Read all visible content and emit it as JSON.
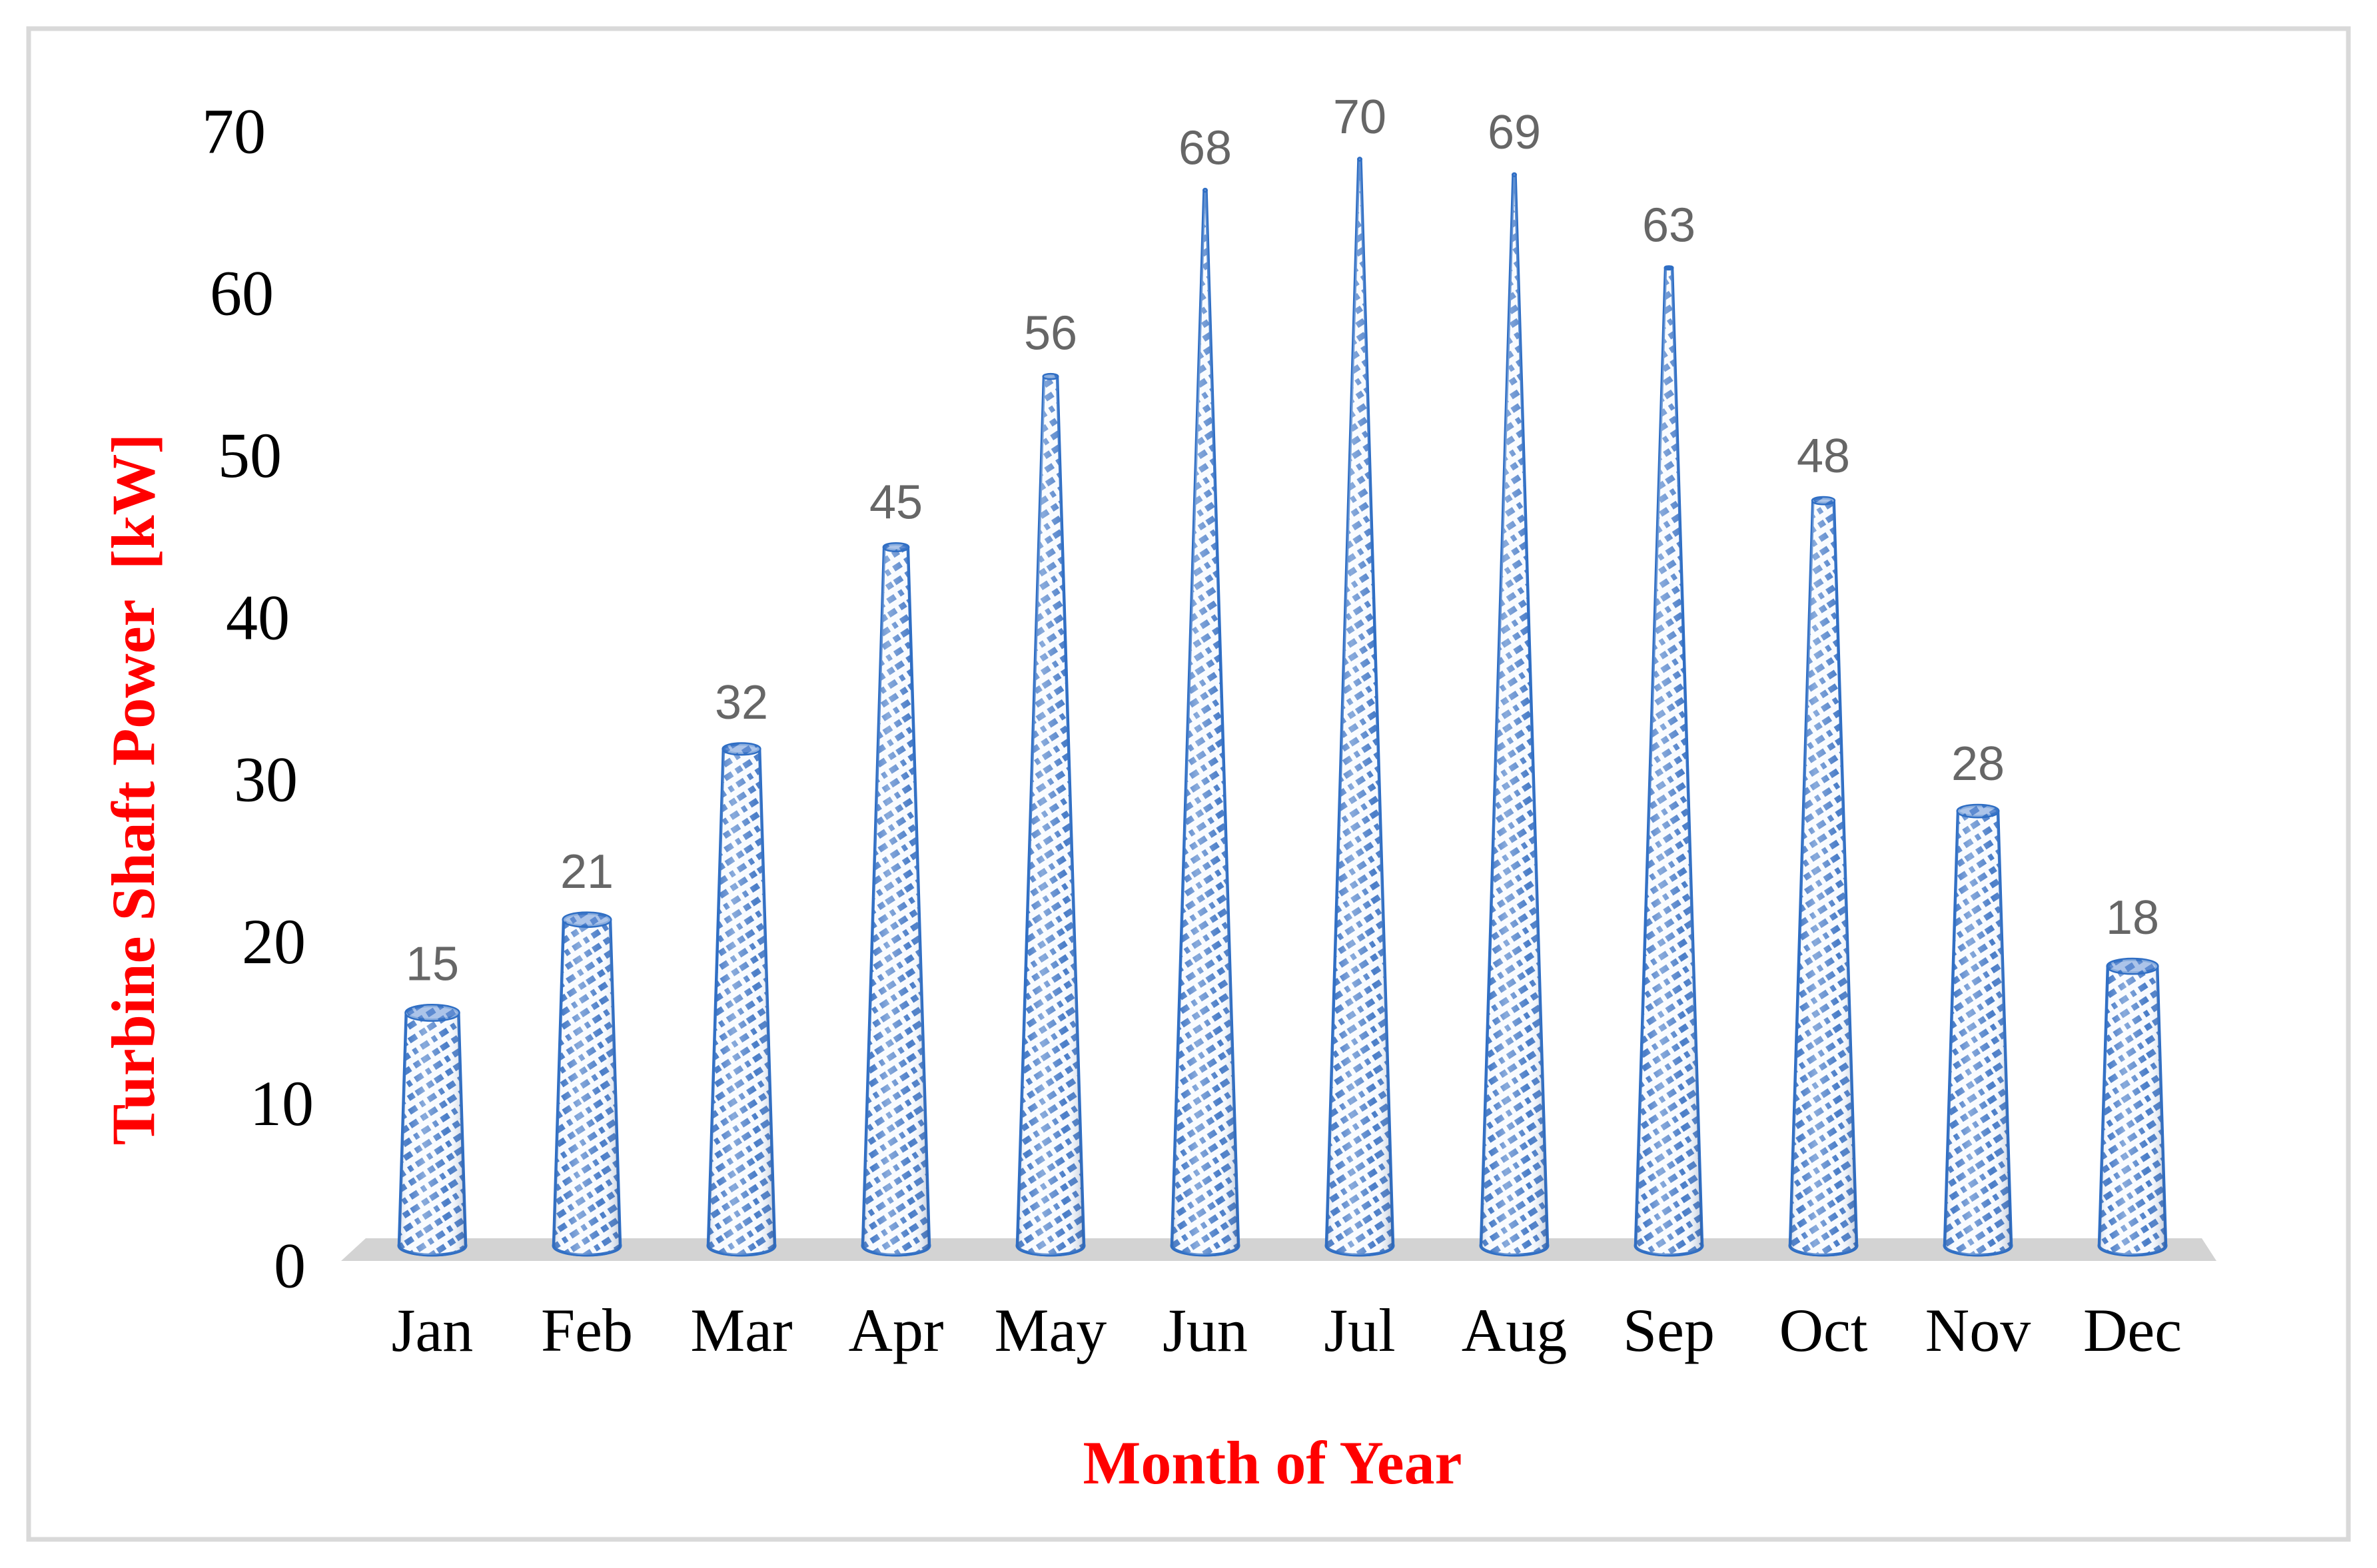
{
  "chart_data": {
    "type": "bar",
    "subtype": "3d-cone",
    "title": "",
    "xlabel": "Month of Year",
    "ylabel": "Turbine Shaft Power  [kW]",
    "categories": [
      "Jan",
      "Feb",
      "Mar",
      "Apr",
      "May",
      "Jun",
      "Jul",
      "Aug",
      "Sep",
      "Oct",
      "Nov",
      "Dec"
    ],
    "values": [
      15,
      21,
      32,
      45,
      56,
      68,
      70,
      69,
      63,
      48,
      28,
      18
    ],
    "data_labels": [
      15,
      21,
      32,
      45,
      56,
      68,
      70,
      69,
      63,
      48,
      28,
      18
    ],
    "yticks": [
      0,
      10,
      20,
      30,
      40,
      50,
      60,
      70
    ],
    "ylim": [
      0,
      70
    ],
    "grid": false,
    "legend": "none",
    "colors": {
      "cone_outline": "#2F6EC4",
      "cone_hatch": "#4A7DC8",
      "cone_fill": "#F7FAFE",
      "cone_top_fill": "#6F97D8",
      "data_label_gray": "#666666",
      "axis_title_red": "#FF0000",
      "tick_black": "#000000",
      "floor_gray": "#D3D3D3",
      "border_gray": "#D9D9D9"
    }
  }
}
